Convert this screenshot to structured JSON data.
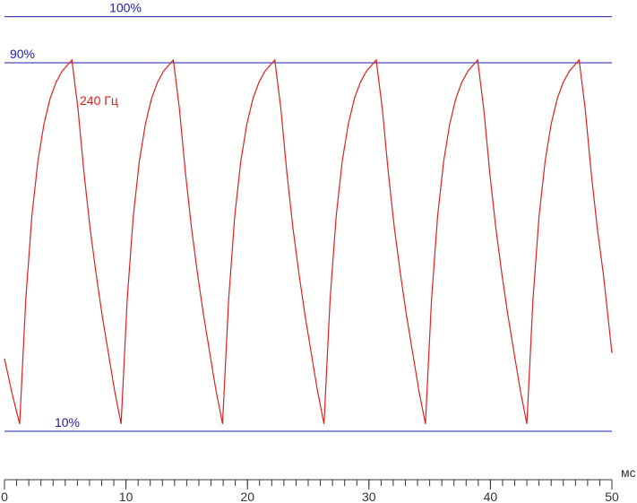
{
  "chart_data": {
    "type": "line",
    "annotation": "240 Гц",
    "xlabel": "мс",
    "xlim": [
      0,
      50
    ],
    "xticks": [
      0,
      10,
      20,
      30,
      40,
      50
    ],
    "xticks_minor": [
      0,
      1,
      2,
      3,
      4,
      5,
      6,
      7,
      8,
      9,
      10,
      11,
      12,
      13,
      14,
      15,
      16,
      17,
      18,
      19,
      20,
      21,
      22,
      23,
      24,
      25,
      26,
      27,
      28,
      29,
      30,
      31,
      32,
      33,
      34,
      35,
      36,
      37,
      38,
      39,
      40,
      41,
      42,
      43,
      44,
      45,
      46,
      47,
      48,
      49,
      50
    ],
    "ylim": [
      0,
      100
    ],
    "yticks": [
      {
        "value": 100,
        "label": "100%"
      },
      {
        "value": 90,
        "label": "90%"
      },
      {
        "value": 10,
        "label": "10%"
      }
    ],
    "grid_color": "#1c1ca8",
    "series": [
      {
        "color": "#e0201e",
        "x": [
          0,
          0.6,
          1.25,
          1.75,
          2.25,
          2.75,
          3.25,
          3.75,
          4.25,
          4.75,
          5.55,
          6.05,
          6.55,
          7.05,
          7.55,
          8.05,
          8.55,
          9.05,
          9.6,
          10.1,
          10.6,
          11.1,
          11.6,
          12.1,
          12.6,
          13.1,
          13.9,
          14.4,
          14.9,
          15.4,
          15.9,
          16.4,
          16.9,
          17.4,
          17.95,
          18.45,
          18.95,
          19.45,
          19.95,
          20.45,
          20.95,
          21.45,
          22.25,
          22.75,
          23.25,
          23.75,
          24.25,
          24.75,
          25.25,
          25.75,
          26.3,
          26.8,
          27.3,
          27.8,
          28.3,
          28.8,
          29.3,
          29.8,
          30.6,
          31.1,
          31.6,
          32.1,
          32.6,
          33.1,
          33.6,
          34.1,
          34.65,
          35.15,
          35.65,
          36.15,
          36.65,
          37.15,
          37.65,
          38.15,
          38.95,
          39.45,
          39.95,
          40.45,
          40.95,
          41.45,
          41.95,
          42.45,
          43.0,
          43.5,
          44.0,
          44.5,
          45.0,
          45.5,
          46.0,
          46.5,
          47.3,
          47.8,
          48.3,
          48.8,
          49.3,
          50
        ],
        "values": [
          25.8,
          18.5,
          11.6,
          38.5,
          56.6,
          68.6,
          76.7,
          82.2,
          85.8,
          88.2,
          90.6,
          80,
          66,
          54,
          44,
          35,
          27,
          19,
          11.6,
          38.5,
          56.6,
          68.6,
          76.7,
          82.2,
          85.8,
          88.2,
          90.6,
          80,
          66,
          54,
          44,
          35,
          27,
          19,
          11.6,
          38.5,
          56.6,
          68.6,
          76.7,
          82.2,
          85.8,
          88.2,
          90.6,
          80,
          66,
          54,
          44,
          35,
          27,
          19,
          11.6,
          38.5,
          56.6,
          68.6,
          76.7,
          82.2,
          85.8,
          88.2,
          90.6,
          80,
          66,
          54,
          44,
          35,
          27,
          19,
          11.6,
          38.5,
          56.6,
          68.6,
          76.7,
          82.2,
          85.8,
          88.2,
          90.6,
          80,
          66,
          54,
          44,
          35,
          27,
          19,
          11.6,
          38.5,
          56.6,
          68.6,
          76.7,
          82.2,
          85.8,
          88.2,
          90.6,
          80,
          66,
          54,
          44,
          27
        ]
      }
    ]
  }
}
